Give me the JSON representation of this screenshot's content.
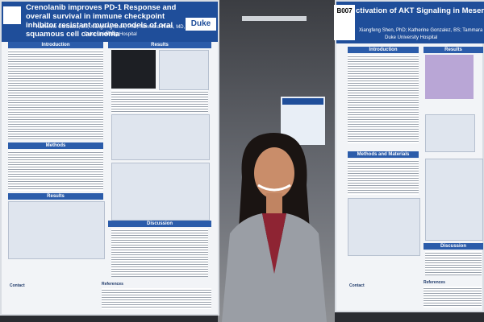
{
  "left_poster": {
    "title": "Crenolanib improves PD-1 Response and overall survival in immune checkpoint inhibitor resistant murine models of oral squamous cell carcinoma",
    "authors": "Katherine Gonzalez, BS; Xiangfeng Shen, PhD; Tammara Watts, MD, PhD",
    "affiliation": "Duke University Hospital",
    "logo": "Duke",
    "sections": [
      "Introduction",
      "Results",
      "Methods",
      "Results",
      "Discussion",
      "Contact",
      "References"
    ]
  },
  "right_poster": {
    "board_id": "B007",
    "title": "ctivation of AKT Signaling in Mesenchymal Stromal Survival and Radiation Resistance in Murine M",
    "authors": "Xiangfeng Shen, PhD; Katherine Gonzalez, BS; Tammara Watts, MD, PhD",
    "affiliation": "Duke University Hospital",
    "sections": [
      "Introduction",
      "Results",
      "Methods and Materials",
      "Discussion",
      "Contact",
      "References"
    ]
  }
}
